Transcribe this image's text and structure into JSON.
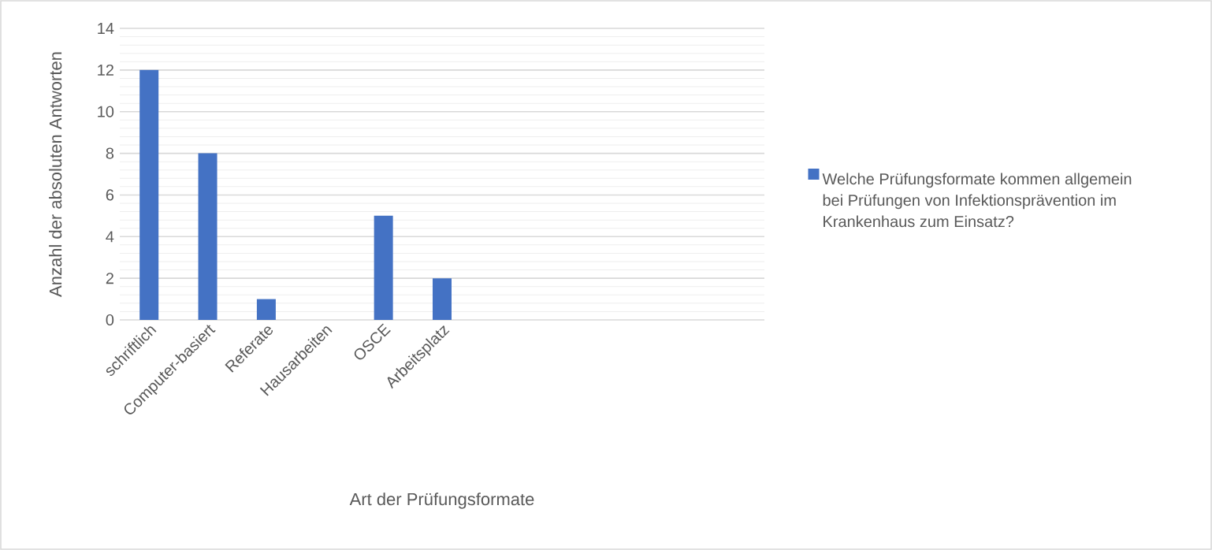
{
  "chart_data": {
    "type": "bar",
    "categories": [
      "schriftlich",
      "Computer-basiert",
      "Referate",
      "Hausarbeiten",
      "OSCE",
      "Arbeitsplatz",
      null,
      null,
      null,
      null,
      null
    ],
    "series": [
      {
        "name": "Welche Prüfungsformate kommen allgemein bei Prüfungen von Infektionsprävention im Krankenhaus zum Einsatz?",
        "color": "#4472c4",
        "values": [
          12,
          8,
          1,
          0,
          5,
          2,
          null,
          null,
          null,
          null,
          null
        ]
      }
    ],
    "xlabel": "Art der Prüfungsformate",
    "ylabel": "Anzahl der absoluten Antworten",
    "ylim": [
      0,
      14
    ],
    "yticks": [
      0,
      2,
      4,
      6,
      8,
      10,
      12,
      14
    ],
    "grid": "y",
    "legend": "right"
  }
}
